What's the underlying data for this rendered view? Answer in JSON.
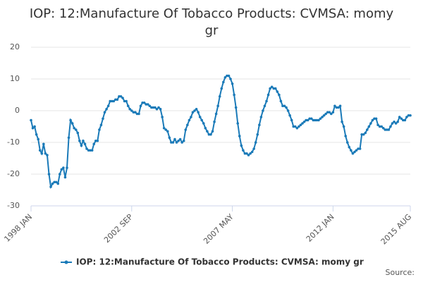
{
  "chart_data": {
    "type": "line",
    "title": "IOP: 12:Manufacture Of Tobacco Products: CVMSA: momy gr",
    "source": "Source:",
    "categories": [
      "1998 JAN",
      null,
      null,
      null,
      null,
      null,
      null,
      null,
      null,
      null,
      null,
      null,
      null,
      null,
      null,
      null,
      null,
      null,
      null,
      null,
      null,
      null,
      null,
      null,
      null,
      null,
      null,
      null,
      null,
      null,
      null,
      null,
      null,
      null,
      null,
      null,
      null,
      null,
      null,
      null,
      null,
      null,
      null,
      null,
      null,
      null,
      null,
      null,
      null,
      null,
      null,
      null,
      null,
      null,
      null,
      null,
      "2002 SEP",
      null,
      null,
      null,
      null,
      null,
      null,
      null,
      null,
      null,
      null,
      null,
      null,
      null,
      null,
      null,
      null,
      null,
      null,
      null,
      null,
      null,
      null,
      null,
      null,
      null,
      null,
      null,
      null,
      null,
      null,
      null,
      null,
      null,
      null,
      null,
      null,
      null,
      null,
      null,
      null,
      null,
      null,
      null,
      null,
      null,
      null,
      null,
      null,
      null,
      null,
      null,
      null,
      null,
      null,
      null,
      "2007 MAY",
      null,
      null,
      null,
      null,
      null,
      null,
      null,
      null,
      null,
      null,
      null,
      null,
      null,
      null,
      null,
      null,
      null,
      null,
      null,
      null,
      null,
      null,
      null,
      null,
      null,
      null,
      null,
      null,
      null,
      null,
      null,
      null,
      null,
      null,
      null,
      null,
      null,
      null,
      null,
      null,
      null,
      null,
      null,
      null,
      null,
      null,
      null,
      null,
      null,
      null,
      null,
      null,
      null,
      null,
      null,
      "2012 JAN",
      null,
      null,
      null,
      null,
      null,
      null,
      null,
      null,
      null,
      null,
      null,
      null,
      null,
      null,
      null,
      null,
      null,
      null,
      null,
      null,
      null,
      null,
      null,
      null,
      null,
      null,
      null,
      null,
      null,
      null,
      null,
      null,
      null,
      null,
      null,
      null,
      null,
      null,
      null,
      null,
      null,
      null,
      "2015 AUG"
    ],
    "series": [
      {
        "name": "IOP: 12:Manufacture Of Tobacco Products: CVMSA: momy gr",
        "color": "#1a7ab8",
        "values": [
          -3,
          -5.5,
          -5,
          -7.5,
          -9,
          -12.5,
          -13.5,
          -10.5,
          -13.5,
          -14,
          -20,
          -24,
          -23,
          -22.5,
          -22.5,
          -23,
          -20,
          -18.5,
          -18,
          -21,
          -18,
          -8.5,
          -3,
          -4,
          -5.5,
          -6,
          -7,
          -9.5,
          -11,
          -9.5,
          -10.5,
          -12,
          -12.5,
          -12.5,
          -12.5,
          -10.5,
          -9.5,
          -9.5,
          -6,
          -4.5,
          -2.5,
          -0.5,
          0.5,
          1.5,
          3,
          3,
          3,
          3.5,
          3.5,
          4.5,
          4.5,
          4,
          3,
          3,
          1.5,
          0.5,
          0,
          -0.5,
          -0.5,
          -1,
          -1,
          1.5,
          2.5,
          2.5,
          2,
          2,
          1.5,
          1,
          1,
          1,
          0.5,
          1,
          0.5,
          -2,
          -5.5,
          -6,
          -6.5,
          -8.5,
          -10,
          -10,
          -9,
          -10,
          -9.5,
          -9,
          -10,
          -9.5,
          -6,
          -4.5,
          -3,
          -2,
          -0.5,
          0,
          0.5,
          -0.5,
          -2,
          -3,
          -4,
          -5.5,
          -6.5,
          -7.5,
          -7.5,
          -6.5,
          -3.5,
          -1,
          1.5,
          4.5,
          7,
          9,
          10.5,
          11,
          11,
          10,
          8.5,
          5,
          1,
          -4,
          -8,
          -11,
          -12.5,
          -13.5,
          -13.5,
          -14,
          -13.5,
          -13,
          -12,
          -10,
          -7.5,
          -4.5,
          -2,
          0,
          1.5,
          3,
          5,
          7,
          7.5,
          7,
          7,
          6,
          5,
          3,
          1.5,
          1.5,
          1,
          0,
          -1.5,
          -3,
          -5,
          -5,
          -5.5,
          -5,
          -4.5,
          -4,
          -3.5,
          -3,
          -3,
          -2.5,
          -2.5,
          -3,
          -3,
          -3,
          -3,
          -2.5,
          -2,
          -1.5,
          -1,
          -0.5,
          -0.5,
          -1,
          -0.5,
          1.5,
          1,
          1,
          1.5,
          -3.5,
          -5,
          -8,
          -10,
          -11.5,
          -12.5,
          -13.5,
          -13,
          -12.5,
          -12,
          -12,
          -7.5,
          -7.5,
          -7,
          -6,
          -5,
          -4,
          -3,
          -2.5,
          -2.5,
          -4.5,
          -5,
          -5,
          -5.5,
          -6,
          -6,
          -6,
          -5,
          -4,
          -3.5,
          -4,
          -3.5,
          -2,
          -2.5,
          -3,
          -3,
          -2,
          -1.5,
          -1.5
        ]
      }
    ],
    "ylim": [
      -30,
      20
    ],
    "yticks": [
      -30,
      -20,
      -10,
      0,
      10,
      20
    ],
    "grid": true,
    "legend": "bottom"
  }
}
